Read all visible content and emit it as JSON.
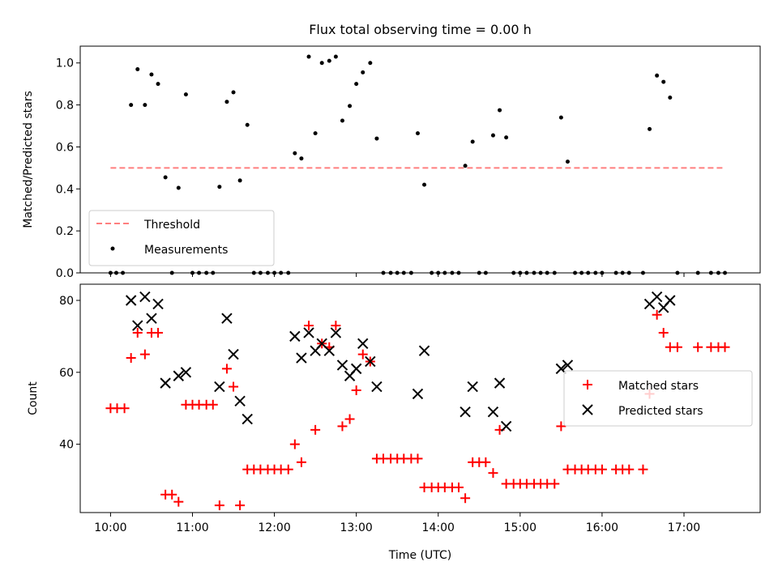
{
  "chart_data": [
    {
      "type": "scatter",
      "title": "Flux total observing time = 0.00 h",
      "xlabel": "",
      "ylabel": "Matched/Predicted stars",
      "xlim": [
        9.63,
        17.93
      ],
      "ylim": [
        0.0,
        1.08
      ],
      "yticks": [
        0.0,
        0.2,
        0.4,
        0.6,
        0.8,
        1.0
      ],
      "ytick_labels": [
        "0.0",
        "0.2",
        "0.4",
        "0.6",
        "0.8",
        "1.0"
      ],
      "legend_position": "lower-left",
      "threshold": {
        "name": "Threshold",
        "value": 0.5,
        "x": [
          10.0,
          17.5
        ],
        "color": "#ff7f7f"
      },
      "series": [
        {
          "name": "Measurements",
          "color": "#000000",
          "points": [
            [
              10.0,
              0
            ],
            [
              10.07,
              0
            ],
            [
              10.15,
              0
            ],
            [
              10.25,
              0.8
            ],
            [
              10.33,
              0.97
            ],
            [
              10.42,
              0.8
            ],
            [
              10.5,
              0.945
            ],
            [
              10.58,
              0.9
            ],
            [
              10.67,
              0.455
            ],
            [
              10.75,
              0
            ],
            [
              10.83,
              0.405
            ],
            [
              10.92,
              0.85
            ],
            [
              11.0,
              0
            ],
            [
              11.08,
              0
            ],
            [
              11.17,
              0
            ],
            [
              11.25,
              0
            ],
            [
              11.33,
              0.41
            ],
            [
              11.42,
              0.815
            ],
            [
              11.5,
              0.86
            ],
            [
              11.58,
              0.44
            ],
            [
              11.67,
              0.705
            ],
            [
              11.75,
              0
            ],
            [
              11.83,
              0
            ],
            [
              11.92,
              0
            ],
            [
              12.0,
              0
            ],
            [
              12.08,
              0
            ],
            [
              12.17,
              0
            ],
            [
              12.25,
              0.57
            ],
            [
              12.33,
              0.545
            ],
            [
              12.42,
              1.03
            ],
            [
              12.5,
              0.665
            ],
            [
              12.58,
              1.0
            ],
            [
              12.67,
              1.01
            ],
            [
              12.75,
              1.03
            ],
            [
              12.83,
              0.725
            ],
            [
              12.92,
              0.795
            ],
            [
              13.0,
              0.9
            ],
            [
              13.08,
              0.955
            ],
            [
              13.17,
              1.0
            ],
            [
              13.25,
              0.64
            ],
            [
              13.33,
              0
            ],
            [
              13.42,
              0
            ],
            [
              13.5,
              0
            ],
            [
              13.58,
              0
            ],
            [
              13.67,
              0
            ],
            [
              13.75,
              0.665
            ],
            [
              13.83,
              0.42
            ],
            [
              13.92,
              0
            ],
            [
              14.0,
              0
            ],
            [
              14.08,
              0
            ],
            [
              14.17,
              0
            ],
            [
              14.25,
              0
            ],
            [
              14.33,
              0.51
            ],
            [
              14.42,
              0.625
            ],
            [
              14.5,
              0
            ],
            [
              14.58,
              0
            ],
            [
              14.67,
              0.655
            ],
            [
              14.75,
              0.775
            ],
            [
              14.83,
              0.645
            ],
            [
              14.92,
              0
            ],
            [
              15.0,
              0
            ],
            [
              15.08,
              0
            ],
            [
              15.17,
              0
            ],
            [
              15.25,
              0
            ],
            [
              15.33,
              0
            ],
            [
              15.42,
              0
            ],
            [
              15.5,
              0.74
            ],
            [
              15.58,
              0.53
            ],
            [
              15.67,
              0
            ],
            [
              15.75,
              0
            ],
            [
              15.83,
              0
            ],
            [
              15.92,
              0
            ],
            [
              16.0,
              0
            ],
            [
              16.17,
              0
            ],
            [
              16.25,
              0
            ],
            [
              16.33,
              0
            ],
            [
              16.5,
              0
            ],
            [
              16.58,
              0.685
            ],
            [
              16.67,
              0.94
            ],
            [
              16.75,
              0.91
            ],
            [
              16.83,
              0.835
            ],
            [
              16.92,
              0
            ],
            [
              17.17,
              0
            ],
            [
              17.33,
              0
            ],
            [
              17.42,
              0
            ],
            [
              17.5,
              0
            ]
          ]
        }
      ]
    },
    {
      "type": "scatter",
      "title": "",
      "xlabel": "Time (UTC)",
      "ylabel": "Count",
      "xlim": [
        9.63,
        17.93
      ],
      "ylim": [
        21,
        84.5
      ],
      "yticks": [
        40,
        60,
        80
      ],
      "ytick_labels": [
        "40",
        "60",
        "80"
      ],
      "xticks": [
        10,
        11,
        12,
        13,
        14,
        15,
        16,
        17
      ],
      "xtick_labels": [
        "10:00",
        "11:00",
        "12:00",
        "13:00",
        "14:00",
        "15:00",
        "16:00",
        "17:00"
      ],
      "legend_position": "center-right",
      "series": [
        {
          "name": "Matched stars",
          "marker": "plus",
          "color": "#ff0000",
          "points": [
            [
              10.0,
              50
            ],
            [
              10.08,
              50
            ],
            [
              10.17,
              50
            ],
            [
              10.25,
              64
            ],
            [
              10.33,
              71
            ],
            [
              10.42,
              65
            ],
            [
              10.5,
              71
            ],
            [
              10.58,
              71
            ],
            [
              10.67,
              26
            ],
            [
              10.75,
              26
            ],
            [
              10.83,
              24
            ],
            [
              10.92,
              51
            ],
            [
              11.0,
              51
            ],
            [
              11.08,
              51
            ],
            [
              11.17,
              51
            ],
            [
              11.25,
              51
            ],
            [
              11.33,
              23
            ],
            [
              11.42,
              61
            ],
            [
              11.5,
              56
            ],
            [
              11.58,
              23
            ],
            [
              11.67,
              33
            ],
            [
              11.75,
              33
            ],
            [
              11.83,
              33
            ],
            [
              11.92,
              33
            ],
            [
              12.0,
              33
            ],
            [
              12.08,
              33
            ],
            [
              12.17,
              33
            ],
            [
              12.25,
              40
            ],
            [
              12.33,
              35
            ],
            [
              12.42,
              73
            ],
            [
              12.5,
              44
            ],
            [
              12.58,
              68
            ],
            [
              12.67,
              67
            ],
            [
              12.75,
              73
            ],
            [
              12.83,
              45
            ],
            [
              12.92,
              47
            ],
            [
              13.0,
              55
            ],
            [
              13.08,
              65
            ],
            [
              13.17,
              63
            ],
            [
              13.25,
              36
            ],
            [
              13.33,
              36
            ],
            [
              13.42,
              36
            ],
            [
              13.5,
              36
            ],
            [
              13.58,
              36
            ],
            [
              13.67,
              36
            ],
            [
              13.75,
              36
            ],
            [
              13.83,
              28
            ],
            [
              13.92,
              28
            ],
            [
              14.0,
              28
            ],
            [
              14.08,
              28
            ],
            [
              14.17,
              28
            ],
            [
              14.25,
              28
            ],
            [
              14.33,
              25
            ],
            [
              14.42,
              35
            ],
            [
              14.5,
              35
            ],
            [
              14.58,
              35
            ],
            [
              14.67,
              32
            ],
            [
              14.75,
              44
            ],
            [
              14.83,
              29
            ],
            [
              14.92,
              29
            ],
            [
              15.0,
              29
            ],
            [
              15.08,
              29
            ],
            [
              15.17,
              29
            ],
            [
              15.25,
              29
            ],
            [
              15.33,
              29
            ],
            [
              15.42,
              29
            ],
            [
              15.5,
              45
            ],
            [
              15.58,
              33
            ],
            [
              15.67,
              33
            ],
            [
              15.75,
              33
            ],
            [
              15.83,
              33
            ],
            [
              15.92,
              33
            ],
            [
              16.0,
              33
            ],
            [
              16.17,
              33
            ],
            [
              16.25,
              33
            ],
            [
              16.33,
              33
            ],
            [
              16.5,
              33
            ],
            [
              16.58,
              54
            ],
            [
              16.67,
              76
            ],
            [
              16.75,
              71
            ],
            [
              16.83,
              67
            ],
            [
              16.92,
              67
            ],
            [
              17.17,
              67
            ],
            [
              17.33,
              67
            ],
            [
              17.42,
              67
            ],
            [
              17.5,
              67
            ]
          ]
        },
        {
          "name": "Predicted stars",
          "marker": "x",
          "color": "#000000",
          "points": [
            [
              10.25,
              80
            ],
            [
              10.33,
              73
            ],
            [
              10.42,
              81
            ],
            [
              10.5,
              75
            ],
            [
              10.58,
              79
            ],
            [
              10.67,
              57
            ],
            [
              10.83,
              59
            ],
            [
              10.92,
              60
            ],
            [
              11.33,
              56
            ],
            [
              11.42,
              75
            ],
            [
              11.5,
              65
            ],
            [
              11.58,
              52
            ],
            [
              11.67,
              47
            ],
            [
              12.25,
              70
            ],
            [
              12.33,
              64
            ],
            [
              12.42,
              71
            ],
            [
              12.5,
              66
            ],
            [
              12.58,
              68
            ],
            [
              12.67,
              66
            ],
            [
              12.75,
              71
            ],
            [
              12.83,
              62
            ],
            [
              12.92,
              59
            ],
            [
              13.0,
              61
            ],
            [
              13.08,
              68
            ],
            [
              13.17,
              63
            ],
            [
              13.25,
              56
            ],
            [
              13.75,
              54
            ],
            [
              13.83,
              66
            ],
            [
              14.33,
              49
            ],
            [
              14.42,
              56
            ],
            [
              14.67,
              49
            ],
            [
              14.75,
              57
            ],
            [
              14.83,
              45
            ],
            [
              15.5,
              61
            ],
            [
              15.58,
              62
            ],
            [
              16.58,
              79
            ],
            [
              16.67,
              81
            ],
            [
              16.75,
              78
            ],
            [
              16.83,
              80
            ]
          ]
        }
      ]
    }
  ]
}
